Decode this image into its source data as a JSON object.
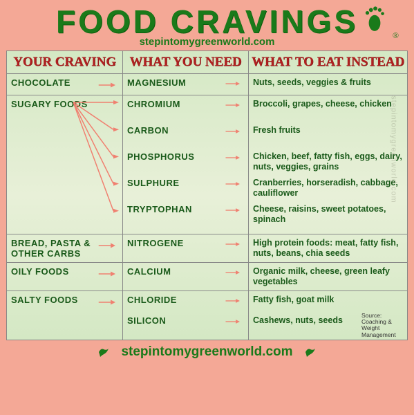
{
  "title": "FOOD CRAVINGS",
  "subtitle": "stepintomygreenworld.com",
  "registered": "®",
  "colors": {
    "page_bg": "#f4a896",
    "table_bg_top": "#d4e8c4",
    "title_green": "#1a7a1a",
    "header_red": "#b02020",
    "text_green": "#1a5a1a",
    "arrow": "#f08070",
    "border": "#888888"
  },
  "headers": {
    "col1": "YOUR CRAVING",
    "col2": "WHAT YOU NEED",
    "col3": "WHAT TO EAT INSTEAD"
  },
  "rows": [
    {
      "craving": "CHOCOLATE",
      "single_arrow": true,
      "needs": [
        {
          "label": "MAGNESIUM",
          "eat": "Nuts, seeds, veggies & fruits"
        }
      ]
    },
    {
      "craving": "SUGARY FOODS",
      "multi_arrow": true,
      "tall": true,
      "needs": [
        {
          "label": "CHROMIUM",
          "eat": "Broccoli, grapes, cheese, chicken"
        },
        {
          "label": "CARBON",
          "eat": "Fresh fruits"
        },
        {
          "label": "PHOSPHORUS",
          "eat": "Chicken, beef, fatty fish, eggs, dairy, nuts, veggies, grains"
        },
        {
          "label": "SULPHURE",
          "eat": "Cranberries, horseradish, cabbage, cauliflower"
        },
        {
          "label": "TRYPTOPHAN",
          "eat": "Cheese, raisins, sweet potatoes, spinach"
        }
      ]
    },
    {
      "craving": "BREAD, PASTA & OTHER CARBS",
      "single_arrow": true,
      "needs": [
        {
          "label": "NITROGENE",
          "eat": "High protein foods: meat, fatty fish, nuts, beans, chia seeds"
        }
      ]
    },
    {
      "craving": "OILY FOODS",
      "single_arrow": true,
      "needs": [
        {
          "label": "CALCIUM",
          "eat": "Organic milk, cheese, green leafy vegetables"
        }
      ]
    },
    {
      "craving": "SALTY FOODS",
      "single_arrow": true,
      "has_source": true,
      "needs": [
        {
          "label": "CHLORIDE",
          "eat": "Fatty fish, goat milk"
        },
        {
          "label": "SILICON",
          "eat": "Cashews, nuts, seeds"
        }
      ]
    }
  ],
  "source": "Source: Coaching & Weight Management",
  "footer": "stepintomygreenworld.com",
  "watermark": "stepintomygreenworld.com"
}
